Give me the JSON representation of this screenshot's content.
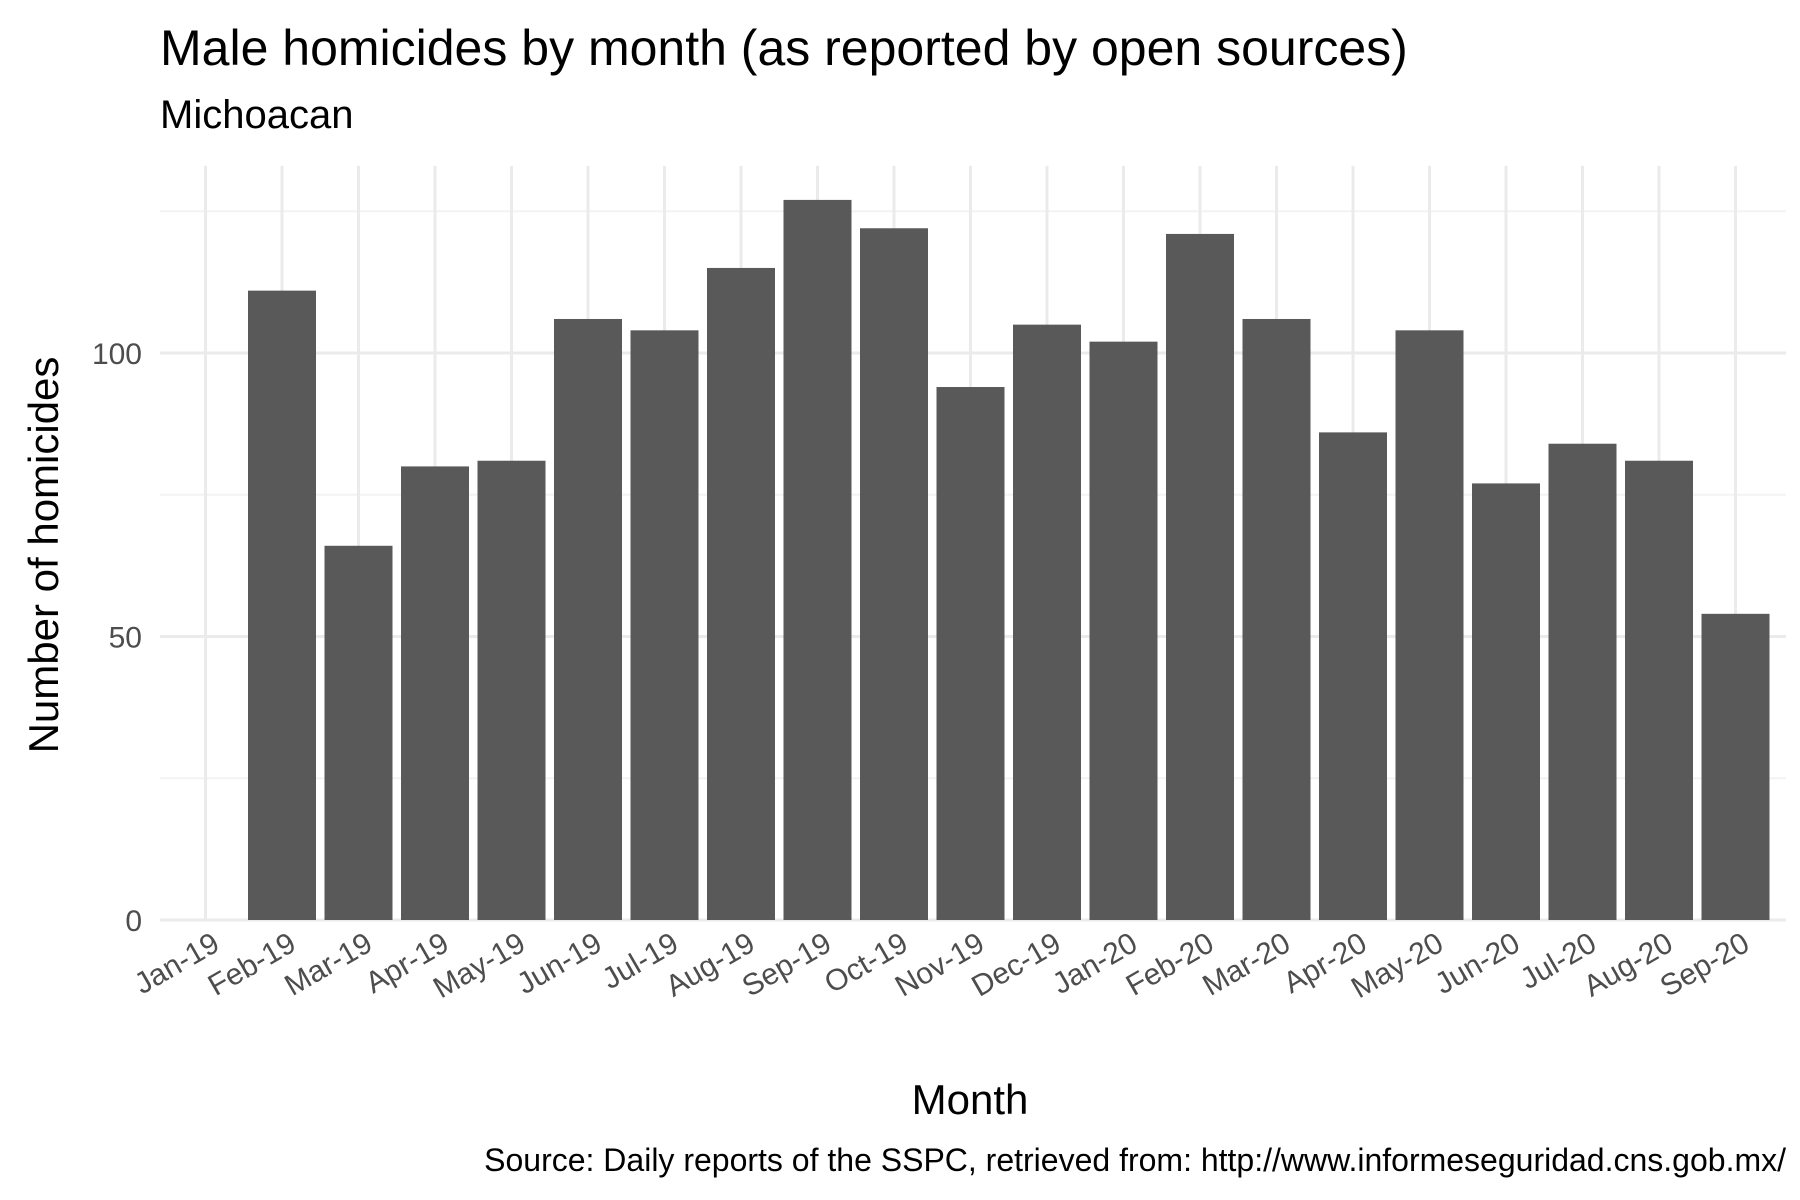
{
  "chart_data": {
    "type": "bar",
    "title": "Male homicides by month (as reported by open sources)",
    "subtitle": "Michoacan",
    "caption": "Source: Daily reports of the SSPC, retrieved from: http://www.informeseguridad.cns.gob.mx/",
    "xlabel": "Month",
    "ylabel": "Number of homicides",
    "x_tick_labels": [
      "Jan-19",
      "Feb-19",
      "Mar-19",
      "Apr-19",
      "May-19",
      "Jun-19",
      "Jul-19",
      "Aug-19",
      "Sep-19",
      "Oct-19",
      "Nov-19",
      "Dec-19",
      "Jan-20",
      "Feb-20",
      "Mar-20",
      "Apr-20",
      "May-20",
      "Jun-20",
      "Jul-20",
      "Aug-20",
      "Sep-20"
    ],
    "bars": [
      {
        "category": "Feb-19",
        "value": 111
      },
      {
        "category": "Mar-19",
        "value": 66
      },
      {
        "category": "Apr-19",
        "value": 80
      },
      {
        "category": "May-19",
        "value": 81
      },
      {
        "category": "Jun-19",
        "value": 106
      },
      {
        "category": "Jul-19",
        "value": 104
      },
      {
        "category": "Aug-19",
        "value": 115
      },
      {
        "category": "Sep-19",
        "value": 127
      },
      {
        "category": "Oct-19",
        "value": 122
      },
      {
        "category": "Nov-19",
        "value": 94
      },
      {
        "category": "Dec-19",
        "value": 105
      },
      {
        "category": "Jan-20",
        "value": 102
      },
      {
        "category": "Feb-20",
        "value": 121
      },
      {
        "category": "Mar-20",
        "value": 106
      },
      {
        "category": "Apr-20",
        "value": 86
      },
      {
        "category": "May-20",
        "value": 104
      },
      {
        "category": "Jun-20",
        "value": 77
      },
      {
        "category": "Jul-20",
        "value": 84
      },
      {
        "category": "Aug-20",
        "value": 81
      },
      {
        "category": "Sep-20",
        "value": 54
      }
    ],
    "y_ticks": [
      0,
      50,
      100
    ],
    "ylim": [
      0,
      133
    ],
    "grid": true,
    "bar_color": "#595959",
    "grid_major_color": "#ebebeb",
    "grid_minor_color": "#f3f3f3"
  }
}
